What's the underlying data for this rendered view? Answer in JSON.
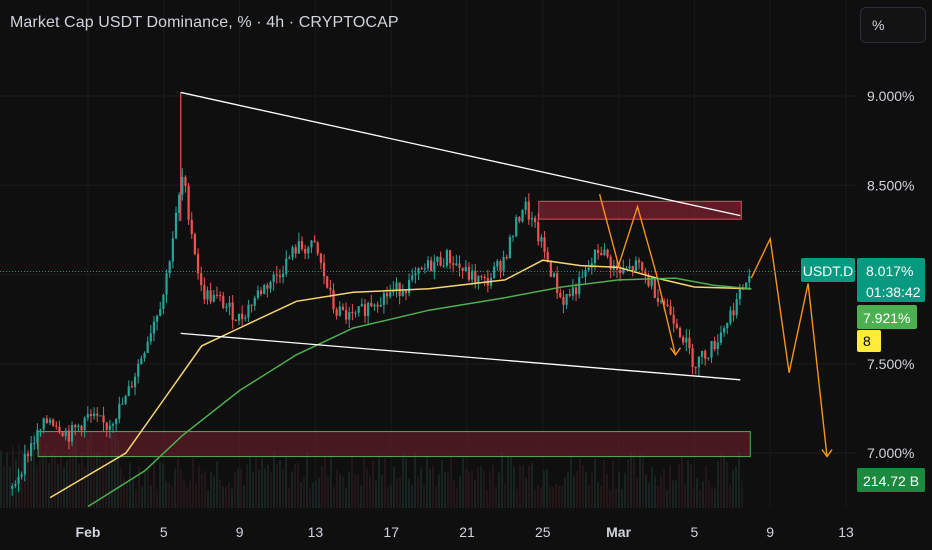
{
  "header": {
    "title": "Market Cap USDT Dominance, % · 4h · CRYPTOCAP",
    "scale_button": "%"
  },
  "price_axis": {
    "ticks": [
      "9.000%",
      "8.500%",
      "7.500%",
      "7.000%"
    ]
  },
  "time_axis": {
    "ticks": [
      "Feb",
      "5",
      "9",
      "13",
      "17",
      "21",
      "25",
      "Mar",
      "5",
      "9",
      "13"
    ]
  },
  "labels": {
    "symbol_tag": "USDT.D",
    "last_price": "8.017%",
    "countdown": "01:38:42",
    "ma_value": "7.921%",
    "ma_tag": "8",
    "volume": "214.72 B"
  },
  "colors": {
    "background": "#0f0f0f",
    "up_candle": "#26a69a",
    "down_candle": "#ef5350",
    "ma_fast": "#f5d76e",
    "ma_slow": "#4caf50",
    "trendline": "#ffffff",
    "projection": "#f7931a",
    "resistance_zone": "#8b2c3a",
    "support_zone": "#5c1b24",
    "last_price_bg": "#089981",
    "ma_value_bg": "#4caf50",
    "ma_tag_bg": "#ffeb3b",
    "volume_bg": "#1b8a3f"
  },
  "chart_data": {
    "type": "candlestick",
    "ylim": [
      6.7,
      9.3
    ],
    "yscale": "linear",
    "xlim_days": [
      "Jan 28",
      "Mar 14"
    ],
    "grid": true,
    "series": [
      {
        "kind": "price",
        "points": [
          [
            "Jan 28",
            6.8
          ],
          [
            "Jan 29",
            7.05
          ],
          [
            "Jan 30",
            7.2
          ],
          [
            "Jan 31",
            7.1
          ],
          [
            "Feb 1",
            7.2
          ],
          [
            "Feb 2",
            7.15
          ],
          [
            "Feb 3",
            7.3
          ],
          [
            "Feb 4",
            7.6
          ],
          [
            "Feb 5",
            7.9
          ],
          [
            "Feb 6",
            8.55
          ],
          [
            "Feb 7",
            7.9
          ],
          [
            "Feb 8",
            7.85
          ],
          [
            "Feb 9",
            7.75
          ],
          [
            "Feb 10",
            7.9
          ],
          [
            "Feb 11",
            8.0
          ],
          [
            "Feb 12",
            8.15
          ],
          [
            "Feb 13",
            8.15
          ],
          [
            "Feb 14",
            7.8
          ],
          [
            "Feb 15",
            7.75
          ],
          [
            "Feb 16",
            7.85
          ],
          [
            "Feb 17",
            7.9
          ],
          [
            "Feb 18",
            7.95
          ],
          [
            "Feb 19",
            8.05
          ],
          [
            "Feb 20",
            8.1
          ],
          [
            "Feb 21",
            8.0
          ],
          [
            "Feb 22",
            7.95
          ],
          [
            "Feb 23",
            8.1
          ],
          [
            "Feb 24",
            8.4
          ],
          [
            "Feb 25",
            8.15
          ],
          [
            "Feb 26",
            7.85
          ],
          [
            "Feb 27",
            7.95
          ],
          [
            "Feb 28",
            8.15
          ],
          [
            "Mar 1",
            8.0
          ],
          [
            "Mar 2",
            8.05
          ],
          [
            "Mar 3",
            7.9
          ],
          [
            "Mar 4",
            7.75
          ],
          [
            "Mar 5",
            7.5
          ],
          [
            "Mar 6",
            7.6
          ],
          [
            "Mar 7",
            7.8
          ],
          [
            "Mar 8",
            8.02
          ]
        ]
      },
      {
        "kind": "moving_average_fast",
        "points": [
          [
            "Jan 30",
            6.75
          ],
          [
            "Feb 3",
            7.0
          ],
          [
            "Feb 5",
            7.3
          ],
          [
            "Feb 7",
            7.6
          ],
          [
            "Feb 9",
            7.7
          ],
          [
            "Feb 12",
            7.85
          ],
          [
            "Feb 15",
            7.9
          ],
          [
            "Feb 19",
            7.92
          ],
          [
            "Feb 23",
            7.97
          ],
          [
            "Feb 25",
            8.08
          ],
          [
            "Feb 27",
            8.05
          ],
          [
            "Mar 1",
            8.04
          ],
          [
            "Mar 3",
            7.98
          ],
          [
            "Mar 5",
            7.93
          ],
          [
            "Mar 8",
            7.92
          ]
        ]
      },
      {
        "kind": "moving_average_slow",
        "points": [
          [
            "Feb 1",
            6.7
          ],
          [
            "Feb 4",
            6.9
          ],
          [
            "Feb 6",
            7.1
          ],
          [
            "Feb 9",
            7.35
          ],
          [
            "Feb 12",
            7.55
          ],
          [
            "Feb 15",
            7.7
          ],
          [
            "Feb 19",
            7.8
          ],
          [
            "Feb 23",
            7.87
          ],
          [
            "Feb 26",
            7.93
          ],
          [
            "Mar 1",
            7.97
          ],
          [
            "Mar 4",
            7.98
          ],
          [
            "Mar 6",
            7.94
          ],
          [
            "Mar 8",
            7.92
          ]
        ]
      }
    ],
    "annotations": {
      "upper_trendline": [
        [
          "Feb 6",
          9.02
        ],
        [
          "Mar 7",
          8.33
        ]
      ],
      "lower_trendline": [
        [
          "Feb 6",
          7.67
        ],
        [
          "Mar 7",
          7.41
        ]
      ],
      "resistance_zone": {
        "x": [
          "Feb 25",
          "Mar 7"
        ],
        "y": [
          8.31,
          8.41
        ]
      },
      "support_zone": {
        "x": [
          "Jan 30",
          "Mar 7"
        ],
        "y": [
          6.98,
          7.12
        ]
      },
      "projection_paths": [
        [
          [
            "Feb 28",
            8.45
          ],
          [
            "Mar 1",
            8.05
          ],
          [
            "Mar 2",
            8.38
          ],
          [
            "Mar 3",
            8.0
          ],
          [
            "Mar 4",
            7.55
          ]
        ],
        [
          [
            "Mar 8",
            7.98
          ],
          [
            "Mar 9",
            8.2
          ],
          [
            "Mar 10",
            7.45
          ],
          [
            "Mar 11",
            7.95
          ],
          [
            "Mar 12",
            6.98
          ]
        ]
      ]
    }
  }
}
